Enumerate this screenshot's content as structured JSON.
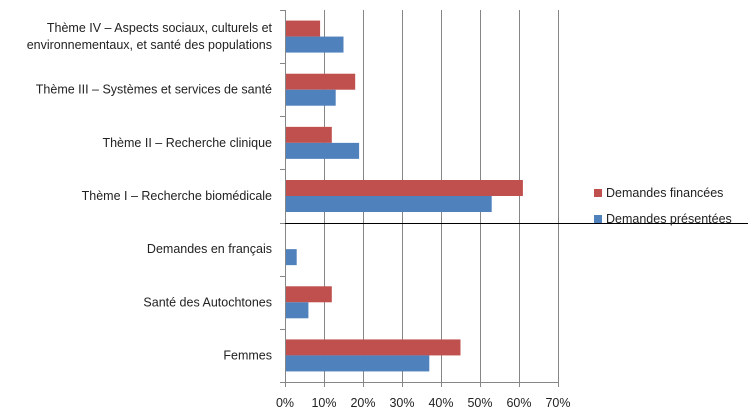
{
  "chart_data": {
    "type": "bar",
    "orientation": "horizontal",
    "categories": [
      [
        "Thème IV – Aspects sociaux, culturels et",
        "environnementaux, et santé des populations"
      ],
      [
        "Thème III – Systèmes et services de santé"
      ],
      [
        "Thème II – Recherche clinique"
      ],
      [
        "Thème I – Recherche biomédicale"
      ],
      [
        "Demandes en français"
      ],
      [
        "Santé des Autochtones"
      ],
      [
        "Femmes"
      ]
    ],
    "series": [
      {
        "name": "Demandes financées",
        "color": "#c0504d",
        "values": [
          9,
          18,
          12,
          61,
          0,
          12,
          45
        ]
      },
      {
        "name": "Demandes présentées",
        "color": "#4f81bd",
        "values": [
          15,
          13,
          19,
          53,
          3,
          6,
          37
        ]
      }
    ],
    "xlim": [
      0,
      70
    ],
    "xticks": [
      0,
      10,
      20,
      30,
      40,
      50,
      60,
      70
    ],
    "tick_suffix": "%",
    "grid": true,
    "separator_after_category": 3,
    "legend_position": "right"
  }
}
